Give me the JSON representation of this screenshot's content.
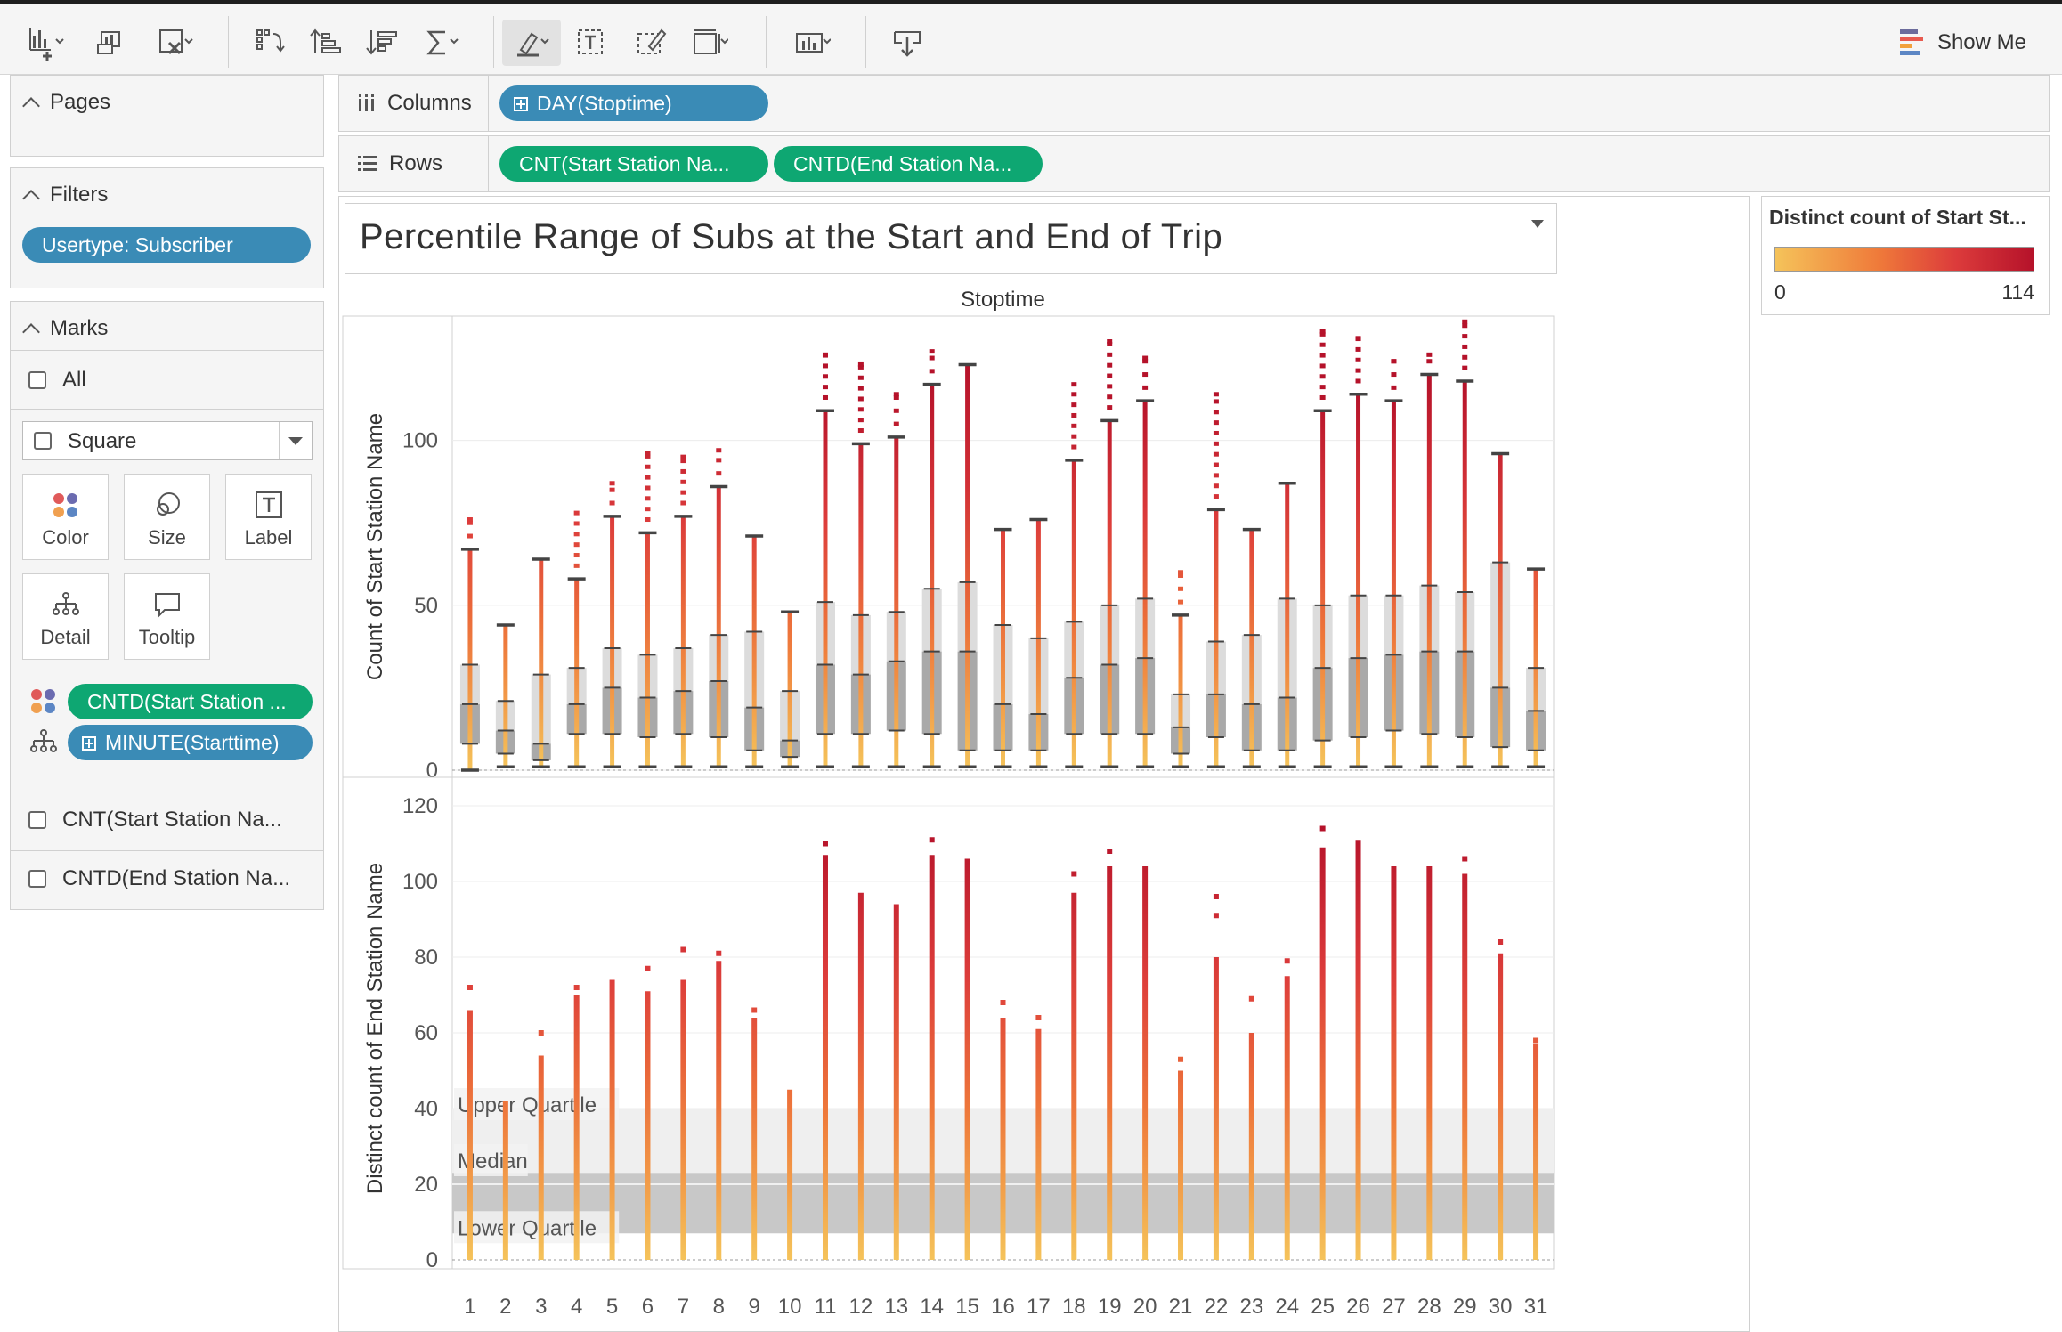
{
  "toolbar": {
    "icons": [
      "new-worksheet-icon",
      "new-dashboard-icon",
      "clear-sheet-icon",
      "swap-icon",
      "sort-ascending-icon",
      "sort-descending-icon",
      "totals-icon",
      "highlight-icon",
      "label-marks-icon",
      "edit-tooltip-icon",
      "fit-icon",
      "presentation-icon",
      "download-icon"
    ],
    "show_me_label": "Show Me"
  },
  "panels": {
    "pages_label": "Pages",
    "filters_label": "Filters",
    "filter_pill": "Usertype: Subscriber",
    "marks_label": "Marks",
    "marks_all": "All",
    "mark_type": "Square",
    "mark_buttons": {
      "color": "Color",
      "size": "Size",
      "label": "Label",
      "detail": "Detail",
      "tooltip": "Tooltip"
    },
    "mark_pill_color": "CNTD(Start Station ...",
    "mark_pill_detail": "MINUTE(Starttime)",
    "mark_card_1": "CNT(Start Station Na...",
    "mark_card_2": "CNTD(End Station Na..."
  },
  "shelves": {
    "columns_label": "Columns",
    "columns_pill": "DAY(Stoptime)",
    "rows_label": "Rows",
    "rows_pill_1": "CNT(Start Station Na...",
    "rows_pill_2": "CNTD(End Station Na..."
  },
  "legend": {
    "title": "Distinct count of Start St...",
    "min": "0",
    "max": "114",
    "colors": [
      "#f5c35a",
      "#ef7a3a",
      "#dc3b3b",
      "#b5122a"
    ]
  },
  "chart_data": [
    {
      "type": "box",
      "title": "Percentile Range of Subs at the Start and End of Trip",
      "xlabel": "Stoptime",
      "ylabel": "Count of Start Station Name",
      "ylim": [
        0,
        135
      ],
      "yticks": [
        0,
        50,
        100
      ],
      "categories": [
        "1",
        "2",
        "3",
        "4",
        "5",
        "6",
        "7",
        "8",
        "9",
        "10",
        "11",
        "12",
        "13",
        "14",
        "15",
        "16",
        "17",
        "18",
        "19",
        "20",
        "21",
        "22",
        "23",
        "24",
        "25",
        "26",
        "27",
        "28",
        "29",
        "30",
        "31"
      ],
      "max": [
        76,
        44,
        64,
        78,
        87,
        96,
        95,
        97,
        71,
        48,
        126,
        123,
        114,
        127,
        123,
        73,
        76,
        117,
        130,
        125,
        60,
        114,
        73,
        87,
        133,
        131,
        124,
        126,
        136,
        96,
        61
      ],
      "upper_whisker": [
        67,
        44,
        64,
        58,
        77,
        72,
        77,
        86,
        71,
        48,
        109,
        99,
        101,
        117,
        123,
        73,
        76,
        94,
        106,
        112,
        47,
        79,
        73,
        87,
        109,
        114,
        112,
        120,
        118,
        96,
        61
      ],
      "q3": [
        32,
        21,
        29,
        31,
        37,
        35,
        37,
        41,
        42,
        24,
        51,
        47,
        48,
        55,
        57,
        44,
        40,
        45,
        50,
        52,
        23,
        39,
        41,
        52,
        50,
        53,
        53,
        56,
        54,
        63,
        31
      ],
      "median": [
        20,
        12,
        8,
        20,
        25,
        22,
        24,
        27,
        19,
        9,
        32,
        29,
        33,
        36,
        36,
        20,
        17,
        28,
        32,
        34,
        13,
        23,
        20,
        22,
        31,
        34,
        35,
        36,
        36,
        25,
        18
      ],
      "q1": [
        8,
        5,
        3,
        11,
        11,
        10,
        11,
        10,
        6,
        4,
        11,
        11,
        12,
        11,
        6,
        6,
        6,
        11,
        11,
        11,
        5,
        10,
        6,
        6,
        9,
        10,
        12,
        11,
        10,
        7,
        6
      ],
      "lower_whisker": [
        0,
        1,
        1,
        1,
        1,
        1,
        1,
        1,
        1,
        1,
        1,
        1,
        1,
        1,
        1,
        1,
        1,
        1,
        1,
        1,
        1,
        1,
        1,
        1,
        1,
        1,
        1,
        1,
        1,
        1,
        1
      ]
    },
    {
      "type": "bar",
      "xlabel": "",
      "ylabel": "Distinct count of End Station Name",
      "ylim": [
        0,
        120
      ],
      "yticks": [
        0,
        20,
        40,
        60,
        80,
        100,
        120
      ],
      "categories": [
        "1",
        "2",
        "3",
        "4",
        "5",
        "6",
        "7",
        "8",
        "9",
        "10",
        "11",
        "12",
        "13",
        "14",
        "15",
        "16",
        "17",
        "18",
        "19",
        "20",
        "21",
        "22",
        "23",
        "24",
        "25",
        "26",
        "27",
        "28",
        "29",
        "30",
        "31"
      ],
      "values": [
        66,
        42,
        54,
        70,
        74,
        71,
        74,
        79,
        64,
        45,
        107,
        97,
        94,
        107,
        106,
        64,
        61,
        97,
        104,
        104,
        50,
        80,
        60,
        75,
        109,
        111,
        104,
        104,
        102,
        81,
        57
      ],
      "outliers": [
        [
          72
        ],
        [],
        [
          60
        ],
        [
          72
        ],
        [],
        [
          77
        ],
        [
          82
        ],
        [
          81
        ],
        [
          66
        ],
        [],
        [
          110
        ],
        [],
        [],
        [
          111
        ],
        [],
        [
          68
        ],
        [
          64
        ],
        [
          102
        ],
        [
          108
        ],
        [],
        [
          53
        ],
        [
          96,
          91
        ],
        [
          69
        ],
        [
          79
        ],
        [
          114
        ],
        [],
        [],
        [],
        [
          106
        ],
        [
          84
        ],
        [
          58
        ]
      ],
      "reference_bands": {
        "lower_quartile": 7,
        "median": 20,
        "median_band_top": 23,
        "upper_quartile": 40
      },
      "band_labels": [
        "Upper Quartile",
        "Median",
        "Lower Quartile"
      ]
    }
  ]
}
